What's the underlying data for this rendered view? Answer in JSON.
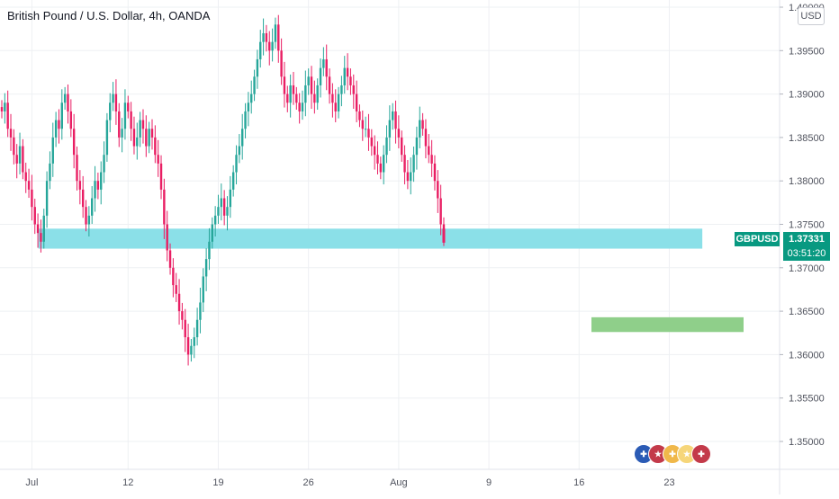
{
  "header": {
    "title": "British Pound / U.S. Dollar, 4h, OANDA"
  },
  "price_axis": {
    "currency": "USD"
  },
  "tags": {
    "symbol": "GBPUSD",
    "last_price": "1.37331",
    "countdown": "03:51:20"
  },
  "colors": {
    "up": "#26a69a",
    "down": "#e91e63",
    "zone_support": "#8be0e8",
    "zone_target": "#8fcf8a",
    "tag": "#089981",
    "grid": "#eef0f3"
  },
  "icons": [
    "uk-flag-icon",
    "us-flag-icon",
    "uk-flag-icon",
    "us-flag-icon",
    "uk-flag-icon"
  ],
  "chart_data": {
    "type": "candlestick",
    "title": "British Pound / U.S. Dollar, 4h, OANDA",
    "y_ticks": [
      "1.40000",
      "1.39500",
      "1.39000",
      "1.38500",
      "1.38000",
      "1.37500",
      "1.37000",
      "1.36500",
      "1.36000",
      "1.35500",
      "1.35000"
    ],
    "x_ticks": [
      {
        "label": "Jul",
        "bar": 10
      },
      {
        "label": "12",
        "bar": 42
      },
      {
        "label": "19",
        "bar": 72
      },
      {
        "label": "26",
        "bar": 102
      },
      {
        "label": "Aug",
        "bar": 132
      },
      {
        "label": "9",
        "bar": 162
      },
      {
        "label": "16",
        "bar": 192
      },
      {
        "label": "23",
        "bar": 222
      }
    ],
    "ylim": [
      1.3475,
      1.4005
    ],
    "support_zone": [
      1.3722,
      1.3745
    ],
    "target_zone": [
      1.3626,
      1.3643
    ],
    "zone_bars": {
      "support": [
        2,
        224
      ],
      "target": [
        186,
        224
      ]
    },
    "closes": [
      1.388,
      1.389,
      1.386,
      1.385,
      1.383,
      1.382,
      1.384,
      1.381,
      1.38,
      1.379,
      1.377,
      1.375,
      1.374,
      1.373,
      1.376,
      1.38,
      1.382,
      1.385,
      1.387,
      1.386,
      1.389,
      1.39,
      1.388,
      1.386,
      1.383,
      1.38,
      1.379,
      1.377,
      1.375,
      1.376,
      1.378,
      1.38,
      1.379,
      1.381,
      1.383,
      1.387,
      1.389,
      1.39,
      1.388,
      1.385,
      1.386,
      1.389,
      1.388,
      1.386,
      1.384,
      1.385,
      1.387,
      1.386,
      1.384,
      1.386,
      1.385,
      1.383,
      1.382,
      1.379,
      1.375,
      1.372,
      1.37,
      1.368,
      1.367,
      1.365,
      1.364,
      1.362,
      1.36,
      1.361,
      1.362,
      1.364,
      1.366,
      1.369,
      1.371,
      1.373,
      1.375,
      1.376,
      1.377,
      1.378,
      1.376,
      1.377,
      1.379,
      1.381,
      1.383,
      1.384,
      1.386,
      1.388,
      1.389,
      1.39,
      1.392,
      1.394,
      1.396,
      1.397,
      1.396,
      1.395,
      1.396,
      1.398,
      1.395,
      1.392,
      1.39,
      1.389,
      1.391,
      1.39,
      1.389,
      1.388,
      1.389,
      1.391,
      1.392,
      1.39,
      1.389,
      1.391,
      1.393,
      1.394,
      1.392,
      1.39,
      1.389,
      1.388,
      1.39,
      1.391,
      1.393,
      1.392,
      1.391,
      1.39,
      1.388,
      1.387,
      1.386,
      1.386,
      1.385,
      1.384,
      1.383,
      1.382,
      1.381,
      1.383,
      1.385,
      1.387,
      1.388,
      1.386,
      1.385,
      1.383,
      1.381,
      1.38,
      1.381,
      1.383,
      1.385,
      1.387,
      1.386,
      1.384,
      1.383,
      1.382,
      1.38,
      1.378,
      1.375,
      1.3733
    ]
  }
}
